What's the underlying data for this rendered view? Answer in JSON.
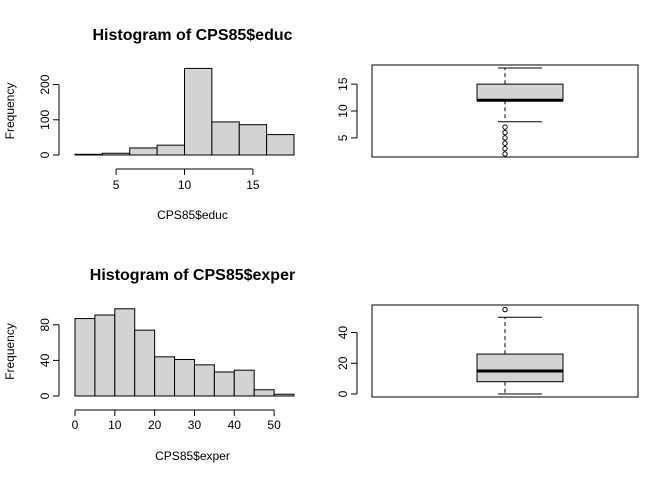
{
  "chart_data": [
    {
      "type": "bar",
      "subtype": "histogram",
      "title": "Histogram of CPS85$educ",
      "xlabel": "CPS85$educ",
      "ylabel": "Frequency",
      "bins": [
        [
          2,
          4
        ],
        [
          4,
          6
        ],
        [
          6,
          8
        ],
        [
          8,
          10
        ],
        [
          10,
          12
        ],
        [
          12,
          14
        ],
        [
          14,
          16
        ],
        [
          16,
          18
        ]
      ],
      "values": [
        2,
        5,
        20,
        28,
        246,
        94,
        86,
        58
      ],
      "xlim": [
        2,
        18
      ],
      "ylim": [
        0,
        250
      ],
      "xticks": [
        5,
        10,
        15
      ],
      "yticks": [
        0,
        100,
        200
      ],
      "bar_color": "#d3d3d3"
    },
    {
      "type": "boxplot",
      "title": "",
      "ylim": [
        2,
        18
      ],
      "yticks": [
        5,
        10,
        15
      ],
      "whisker_low": 8,
      "q1": 12,
      "median": 12,
      "q3": 15,
      "whisker_high": 18,
      "outliers": [
        2,
        3,
        4,
        5,
        6,
        7
      ],
      "box_color": "#d3d3d3"
    },
    {
      "type": "bar",
      "subtype": "histogram",
      "title": "Histogram of CPS85$exper",
      "xlabel": "CPS85$exper",
      "ylabel": "Frequency",
      "bins": [
        [
          0,
          5
        ],
        [
          5,
          10
        ],
        [
          10,
          15
        ],
        [
          15,
          20
        ],
        [
          20,
          25
        ],
        [
          25,
          30
        ],
        [
          30,
          35
        ],
        [
          35,
          40
        ],
        [
          40,
          45
        ],
        [
          45,
          50
        ],
        [
          50,
          55
        ]
      ],
      "values": [
        87,
        91,
        98,
        74,
        44,
        41,
        35,
        27,
        29,
        7,
        2
      ],
      "xlim": [
        0,
        55
      ],
      "ylim": [
        0,
        100
      ],
      "xticks": [
        0,
        10,
        20,
        30,
        40,
        50
      ],
      "yticks": [
        0,
        40,
        80
      ],
      "bar_color": "#d3d3d3"
    },
    {
      "type": "boxplot",
      "title": "",
      "ylim": [
        0,
        56
      ],
      "yticks": [
        0,
        20,
        40
      ],
      "whisker_low": 0,
      "q1": 8,
      "median": 15,
      "q3": 26,
      "whisker_high": 50,
      "outliers": [
        55
      ],
      "box_color": "#d3d3d3"
    }
  ]
}
